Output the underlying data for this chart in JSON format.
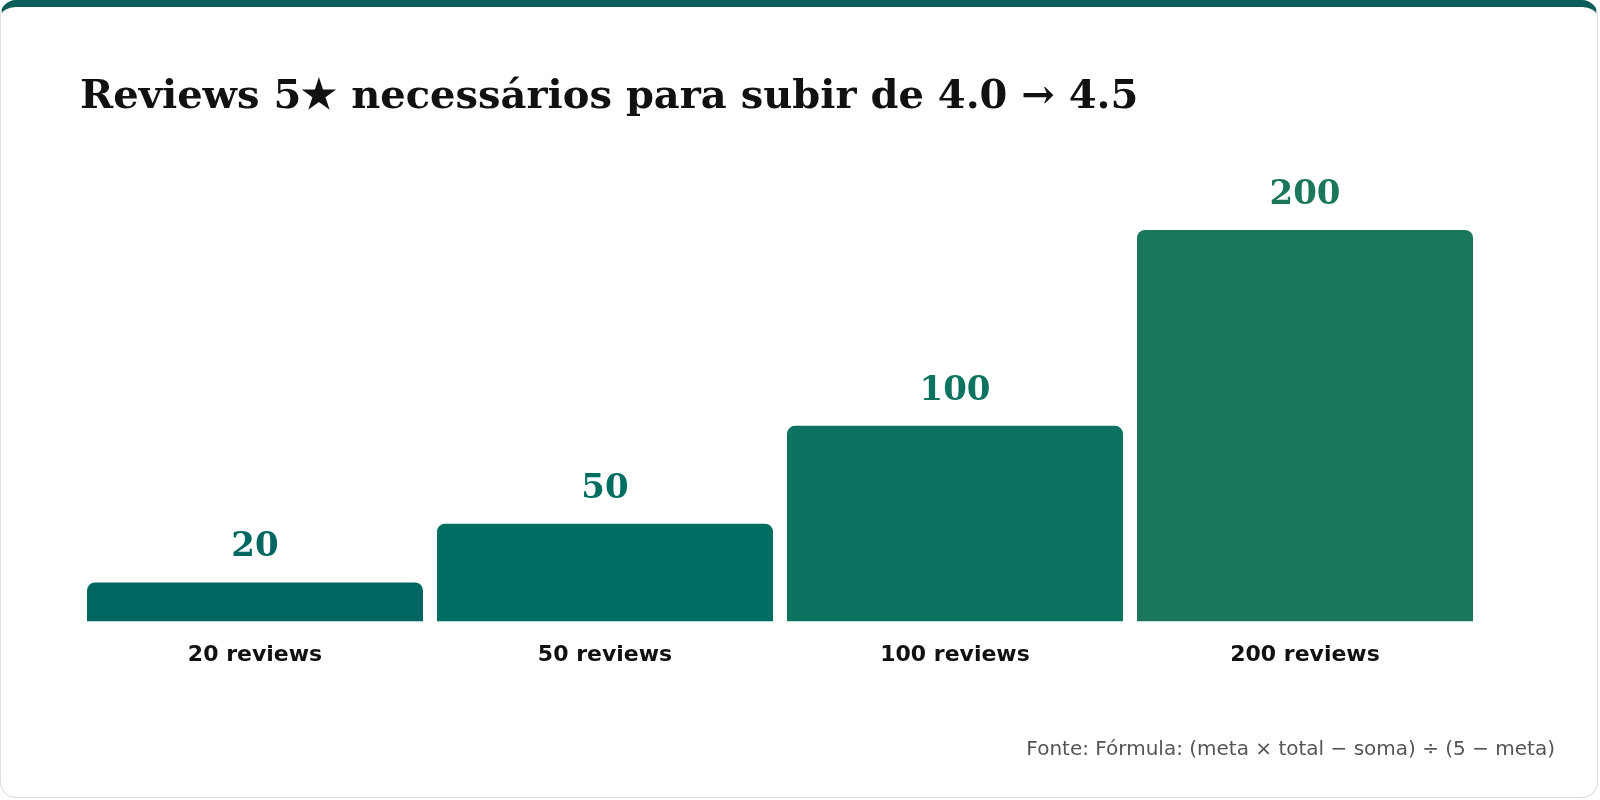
{
  "chart_data": {
    "type": "bar",
    "title": "Reviews 5★ necessários para subir de 4.0 → 4.5",
    "categories": [
      "20 reviews",
      "50 reviews",
      "100 reviews",
      "200 reviews"
    ],
    "values": [
      20,
      50,
      100,
      200
    ],
    "colors": [
      "#006661",
      "#006d62",
      "#0b735f",
      "#1b775c"
    ],
    "data_labels": true,
    "grid": false,
    "legend": false,
    "tick_labels": "x",
    "annotations": [
      "Fonte: Fórmula: (meta × total − soma) ÷ (5 − meta)"
    ]
  }
}
